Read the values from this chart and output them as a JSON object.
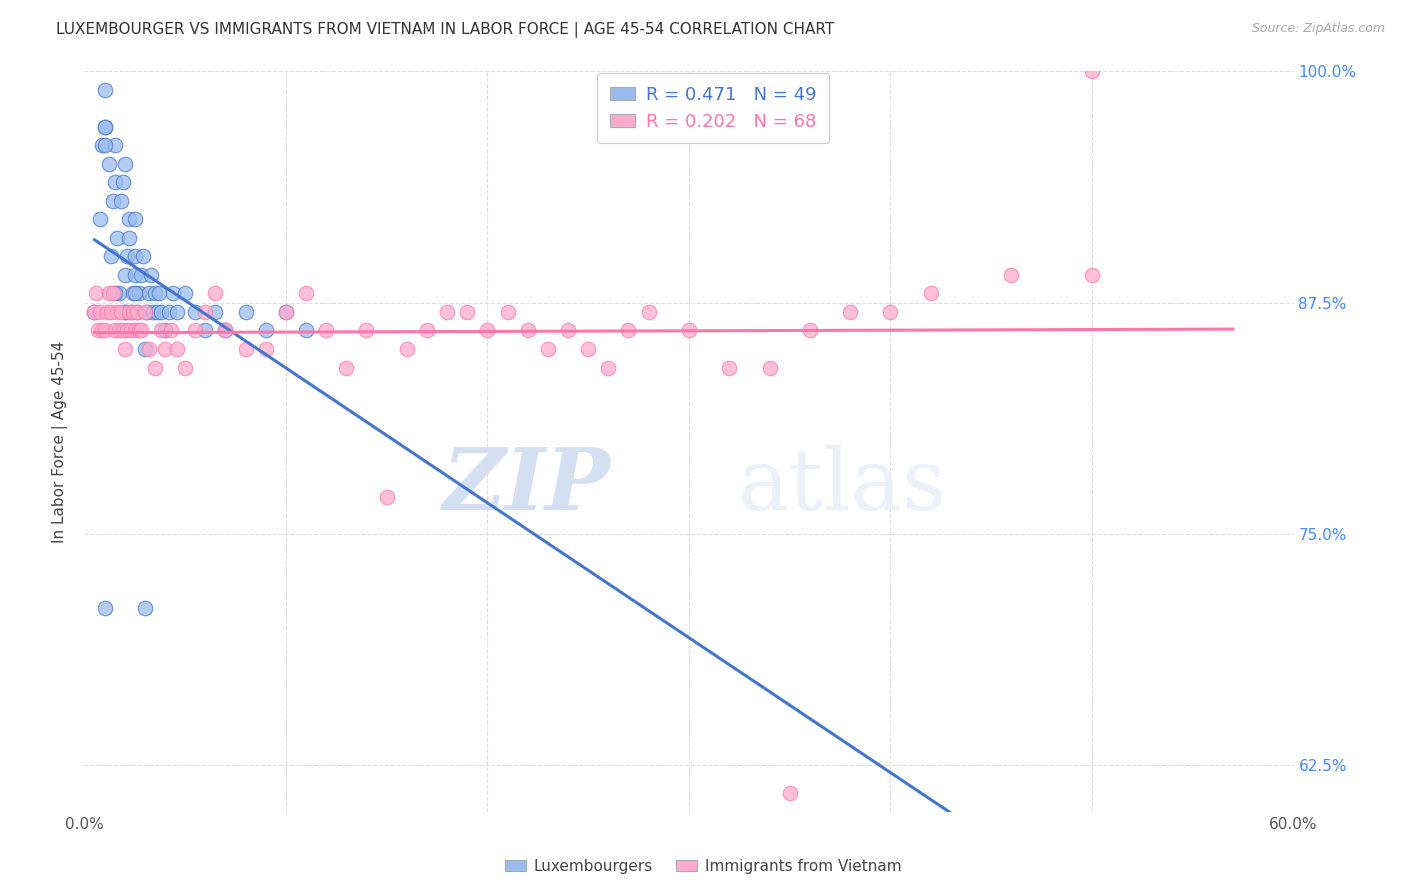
{
  "title": "LUXEMBOURGER VS IMMIGRANTS FROM VIETNAM IN LABOR FORCE | AGE 45-54 CORRELATION CHART",
  "source": "Source: ZipAtlas.com",
  "ylabel": "In Labor Force | Age 45-54",
  "xlim": [
    0.0,
    0.6
  ],
  "ylim": [
    0.6,
    1.0
  ],
  "blue_color": "#99BBEE",
  "pink_color": "#FFAACC",
  "blue_line_color": "#4477CC",
  "pink_line_color": "#FF77AA",
  "blue_R": 0.471,
  "blue_N": 49,
  "pink_R": 0.202,
  "pink_N": 68,
  "blue_scatter_x": [
    0.005,
    0.008,
    0.009,
    0.01,
    0.01,
    0.012,
    0.013,
    0.014,
    0.015,
    0.015,
    0.016,
    0.017,
    0.018,
    0.019,
    0.02,
    0.02,
    0.021,
    0.022,
    0.022,
    0.023,
    0.024,
    0.025,
    0.025,
    0.026,
    0.027,
    0.028,
    0.029,
    0.03,
    0.031,
    0.032,
    0.033,
    0.034,
    0.035,
    0.036,
    0.037,
    0.038,
    0.04,
    0.042,
    0.044,
    0.046,
    0.05,
    0.055,
    0.06,
    0.065,
    0.07,
    0.08,
    0.09,
    0.1,
    0.11
  ],
  "blue_scatter_y": [
    0.87,
    0.92,
    0.96,
    0.97,
    0.97,
    0.95,
    0.9,
    0.93,
    0.94,
    0.96,
    0.91,
    0.88,
    0.93,
    0.94,
    0.87,
    0.89,
    0.9,
    0.91,
    0.92,
    0.87,
    0.88,
    0.89,
    0.9,
    0.87,
    0.88,
    0.89,
    0.9,
    0.85,
    0.87,
    0.88,
    0.89,
    0.87,
    0.88,
    0.87,
    0.88,
    0.87,
    0.86,
    0.87,
    0.88,
    0.87,
    0.88,
    0.87,
    0.86,
    0.87,
    0.86,
    0.87,
    0.86,
    0.87,
    0.86
  ],
  "blue_scatter_x2": [
    0.01,
    0.01,
    0.015,
    0.02,
    0.02,
    0.025,
    0.025,
    0.01,
    0.03
  ],
  "blue_scatter_y2": [
    0.99,
    0.96,
    0.88,
    0.95,
    0.87,
    0.88,
    0.92,
    0.71,
    0.71
  ],
  "pink_scatter_x": [
    0.005,
    0.006,
    0.007,
    0.008,
    0.009,
    0.01,
    0.011,
    0.012,
    0.013,
    0.014,
    0.015,
    0.016,
    0.017,
    0.018,
    0.019,
    0.02,
    0.021,
    0.022,
    0.023,
    0.024,
    0.025,
    0.026,
    0.027,
    0.028,
    0.03,
    0.032,
    0.035,
    0.038,
    0.04,
    0.043,
    0.046,
    0.05,
    0.055,
    0.06,
    0.065,
    0.07,
    0.08,
    0.09,
    0.1,
    0.11,
    0.12,
    0.13,
    0.14,
    0.15,
    0.16,
    0.17,
    0.18,
    0.19,
    0.2,
    0.21,
    0.22,
    0.23,
    0.24,
    0.25,
    0.26,
    0.27,
    0.28,
    0.3,
    0.32,
    0.34,
    0.36,
    0.38,
    0.35,
    0.4,
    0.42,
    0.46,
    0.5,
    0.5
  ],
  "pink_scatter_y": [
    0.87,
    0.88,
    0.86,
    0.87,
    0.86,
    0.86,
    0.87,
    0.88,
    0.87,
    0.88,
    0.86,
    0.87,
    0.86,
    0.87,
    0.86,
    0.85,
    0.86,
    0.87,
    0.86,
    0.87,
    0.86,
    0.87,
    0.86,
    0.86,
    0.87,
    0.85,
    0.84,
    0.86,
    0.85,
    0.86,
    0.85,
    0.84,
    0.86,
    0.87,
    0.88,
    0.86,
    0.85,
    0.85,
    0.87,
    0.88,
    0.86,
    0.84,
    0.86,
    0.77,
    0.85,
    0.86,
    0.87,
    0.87,
    0.86,
    0.87,
    0.86,
    0.85,
    0.86,
    0.85,
    0.84,
    0.86,
    0.87,
    0.86,
    0.84,
    0.84,
    0.86,
    0.87,
    0.61,
    0.87,
    0.88,
    0.89,
    0.89,
    1.0
  ],
  "watermark_zip": "ZIP",
  "watermark_atlas": "atlas",
  "background_color": "#FFFFFF",
  "grid_color": "#DDDDDD",
  "ytick_vals": [
    0.625,
    0.75,
    0.875,
    1.0
  ],
  "ytick_labels": [
    "62.5%",
    "75.0%",
    "87.5%",
    "100.0%"
  ],
  "xtick_vals": [
    0.0,
    0.1,
    0.2,
    0.3,
    0.4,
    0.5,
    0.6
  ],
  "xtick_labels": [
    "0.0%",
    "",
    "",
    "",
    "",
    "",
    "60.0%"
  ]
}
